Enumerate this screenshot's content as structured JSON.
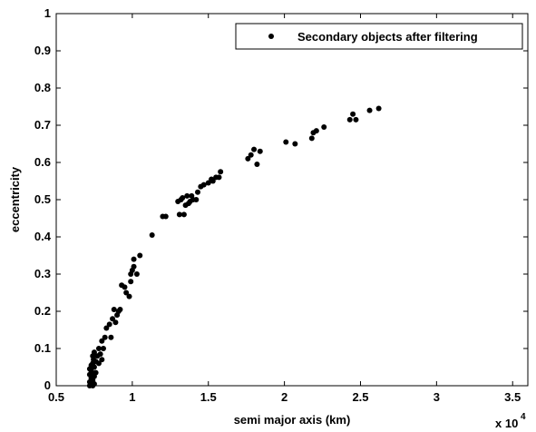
{
  "chart_data": {
    "type": "scatter",
    "xlabel": "semi major axis (km)",
    "ylabel": "eccentricity",
    "x_multiplier": "x 10",
    "x_multiplier_exp": "4",
    "xlim": [
      0.5,
      3.6
    ],
    "ylim": [
      0,
      1
    ],
    "xticks": [
      0.5,
      1,
      1.5,
      2,
      2.5,
      3,
      3.5
    ],
    "yticks": [
      0,
      0.1,
      0.2,
      0.3,
      0.4,
      0.5,
      0.6,
      0.7,
      0.8,
      0.9,
      1
    ],
    "xtick_labels": [
      "0.5",
      "1",
      "1.5",
      "2",
      "2.5",
      "3",
      "3.5"
    ],
    "ytick_labels": [
      "0",
      "0.1",
      "0.2",
      "0.3",
      "0.4",
      "0.5",
      "0.6",
      "0.7",
      "0.8",
      "0.9",
      "1"
    ],
    "legend": {
      "position": "top-right",
      "label": "Secondary objects after filtering"
    },
    "marker_color": "#000000",
    "series": [
      {
        "name": "Secondary objects after filtering",
        "points": [
          [
            0.72,
            0.0
          ],
          [
            0.72,
            0.01
          ],
          [
            0.73,
            0.005
          ],
          [
            0.73,
            0.02
          ],
          [
            0.72,
            0.03
          ],
          [
            0.73,
            0.04
          ],
          [
            0.74,
            0.0
          ],
          [
            0.74,
            0.015
          ],
          [
            0.735,
            0.03
          ],
          [
            0.72,
            0.045
          ],
          [
            0.75,
            0.005
          ],
          [
            0.75,
            0.025
          ],
          [
            0.73,
            0.055
          ],
          [
            0.74,
            0.06
          ],
          [
            0.75,
            0.05
          ],
          [
            0.745,
            0.07
          ],
          [
            0.74,
            0.08
          ],
          [
            0.76,
            0.035
          ],
          [
            0.76,
            0.065
          ],
          [
            0.77,
            0.08
          ],
          [
            0.75,
            0.09
          ],
          [
            0.78,
            0.06
          ],
          [
            0.78,
            0.1
          ],
          [
            0.79,
            0.085
          ],
          [
            0.8,
            0.07
          ],
          [
            0.8,
            0.12
          ],
          [
            0.81,
            0.1
          ],
          [
            0.82,
            0.13
          ],
          [
            0.83,
            0.155
          ],
          [
            0.85,
            0.165
          ],
          [
            0.86,
            0.13
          ],
          [
            0.87,
            0.18
          ],
          [
            0.88,
            0.205
          ],
          [
            0.89,
            0.17
          ],
          [
            0.9,
            0.19
          ],
          [
            0.91,
            0.2
          ],
          [
            0.92,
            0.205
          ],
          [
            0.93,
            0.27
          ],
          [
            0.95,
            0.265
          ],
          [
            0.96,
            0.25
          ],
          [
            0.98,
            0.24
          ],
          [
            0.99,
            0.3
          ],
          [
            0.99,
            0.28
          ],
          [
            1.0,
            0.31
          ],
          [
            1.01,
            0.32
          ],
          [
            1.01,
            0.34
          ],
          [
            1.03,
            0.3
          ],
          [
            1.05,
            0.35
          ],
          [
            1.13,
            0.405
          ],
          [
            1.2,
            0.455
          ],
          [
            1.22,
            0.455
          ],
          [
            1.3,
            0.495
          ],
          [
            1.31,
            0.46
          ],
          [
            1.32,
            0.5
          ],
          [
            1.33,
            0.505
          ],
          [
            1.34,
            0.46
          ],
          [
            1.35,
            0.485
          ],
          [
            1.36,
            0.51
          ],
          [
            1.37,
            0.49
          ],
          [
            1.38,
            0.495
          ],
          [
            1.39,
            0.51
          ],
          [
            1.4,
            0.5
          ],
          [
            1.42,
            0.5
          ],
          [
            1.43,
            0.52
          ],
          [
            1.45,
            0.535
          ],
          [
            1.47,
            0.54
          ],
          [
            1.5,
            0.545
          ],
          [
            1.52,
            0.555
          ],
          [
            1.53,
            0.55
          ],
          [
            1.55,
            0.56
          ],
          [
            1.57,
            0.56
          ],
          [
            1.58,
            0.575
          ],
          [
            1.76,
            0.61
          ],
          [
            1.78,
            0.62
          ],
          [
            1.8,
            0.635
          ],
          [
            1.82,
            0.595
          ],
          [
            1.84,
            0.63
          ],
          [
            2.01,
            0.655
          ],
          [
            2.07,
            0.65
          ],
          [
            2.18,
            0.665
          ],
          [
            2.19,
            0.68
          ],
          [
            2.21,
            0.685
          ],
          [
            2.26,
            0.695
          ],
          [
            2.43,
            0.715
          ],
          [
            2.45,
            0.73
          ],
          [
            2.47,
            0.715
          ],
          [
            2.56,
            0.74
          ],
          [
            2.62,
            0.745
          ]
        ]
      }
    ]
  }
}
